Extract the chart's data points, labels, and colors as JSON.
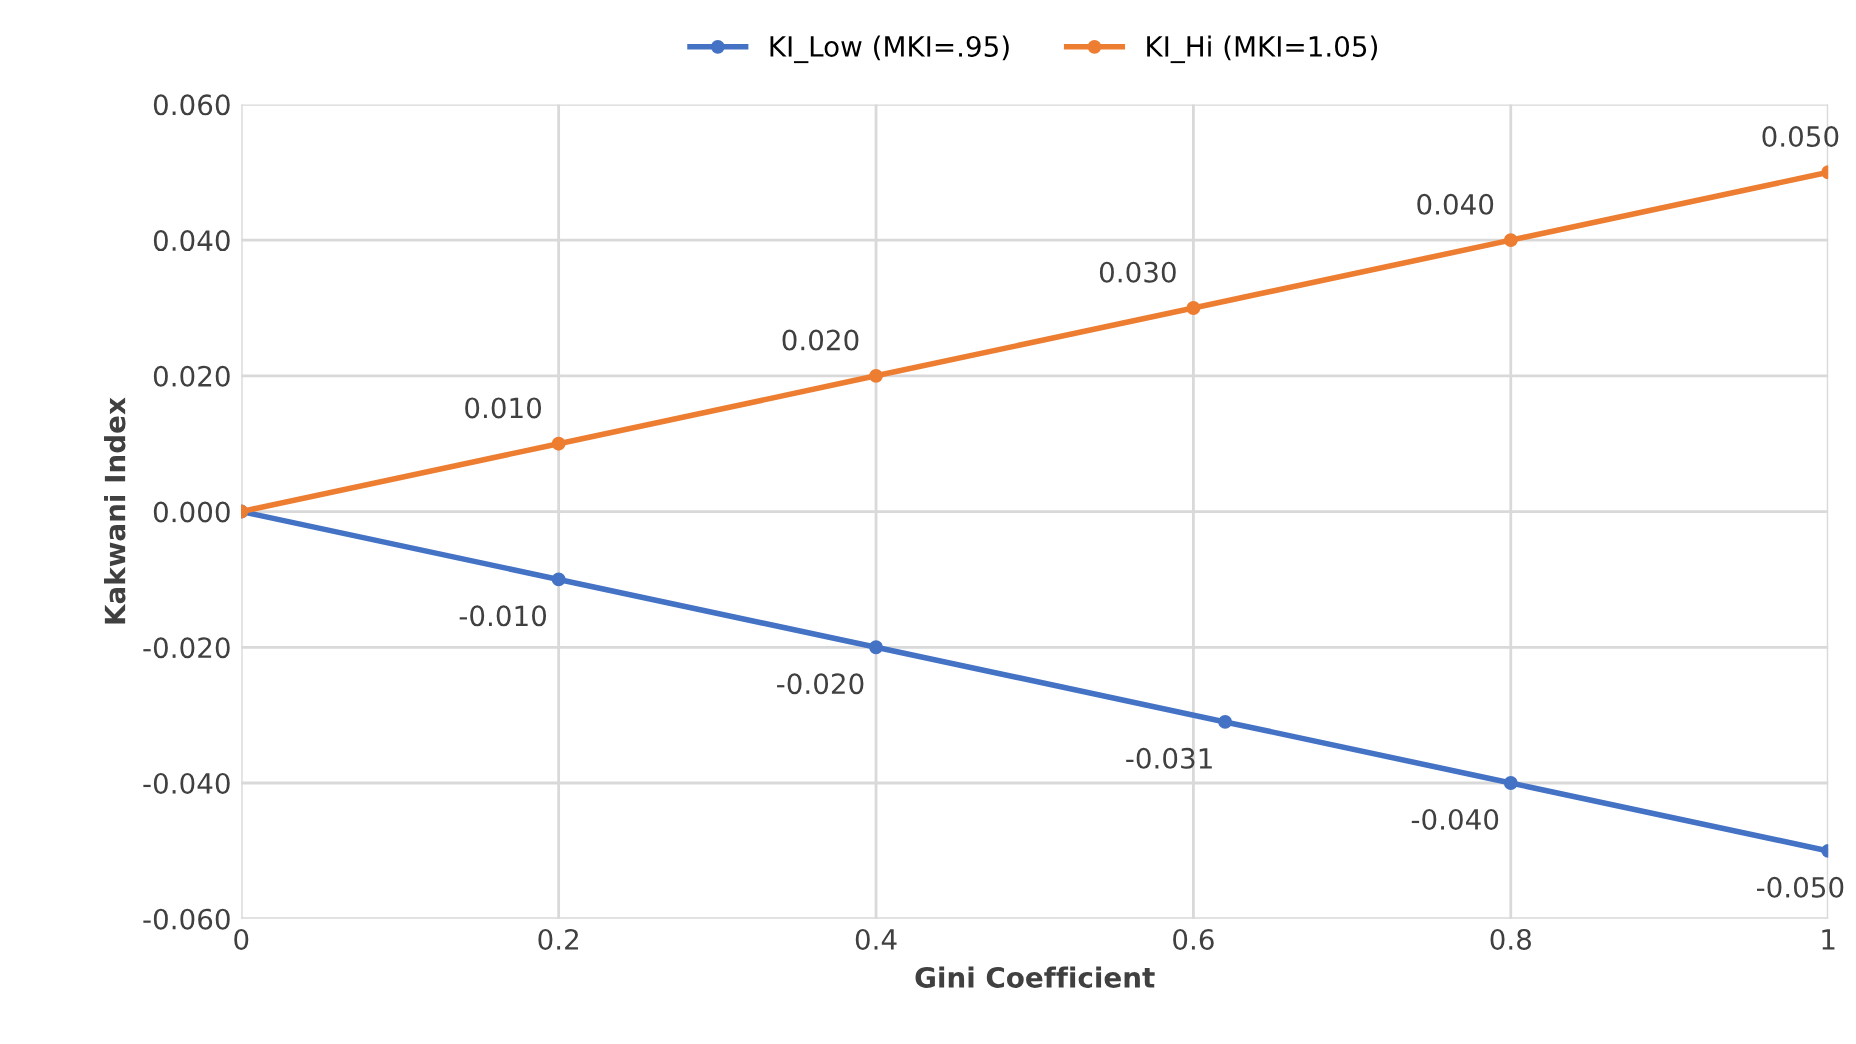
{
  "chart_data": {
    "type": "line",
    "xlabel": "Gini Coefficient",
    "ylabel": "Kakwani Index",
    "legend": "top",
    "grid": true,
    "marker": "circle",
    "line_style": "solid",
    "xlim": [
      0,
      1
    ],
    "xticks": [
      0,
      0.2,
      0.4,
      0.6,
      0.8,
      1
    ],
    "ylim": [
      -0.06,
      0.06
    ],
    "yticks": [
      {
        "value": -0.06,
        "label": "-0.060"
      },
      {
        "value": -0.04,
        "label": "-0.040"
      },
      {
        "value": -0.02,
        "label": "-0.020"
      },
      {
        "value": 0,
        "label": "0.000"
      },
      {
        "value": 0.02,
        "label": "0.020"
      },
      {
        "value": 0.04,
        "label": "0.040"
      },
      {
        "value": 0.06,
        "label": "0.060"
      }
    ],
    "series": [
      {
        "name": "KI_Low (MKI=.95)",
        "color": "#4472c4",
        "x": [
          0,
          0.2,
          0.4,
          0.62,
          0.8,
          1
        ],
        "values": [
          0,
          -0.01,
          -0.02,
          -0.031,
          -0.04,
          -0.05
        ],
        "value_labels": [
          null,
          "-0.010",
          "-0.020",
          "-0.031",
          "-0.040",
          "-0.050"
        ]
      },
      {
        "name": "KI_Hi (MKI=1.05)",
        "color": "#ed7d31",
        "x": [
          0,
          0.2,
          0.4,
          0.6,
          0.8,
          1
        ],
        "values": [
          0,
          0.01,
          0.02,
          0.03,
          0.04,
          0.05
        ],
        "value_labels": [
          null,
          "0.010",
          "0.020",
          "0.030",
          "0.040",
          "0.050"
        ]
      }
    ]
  }
}
